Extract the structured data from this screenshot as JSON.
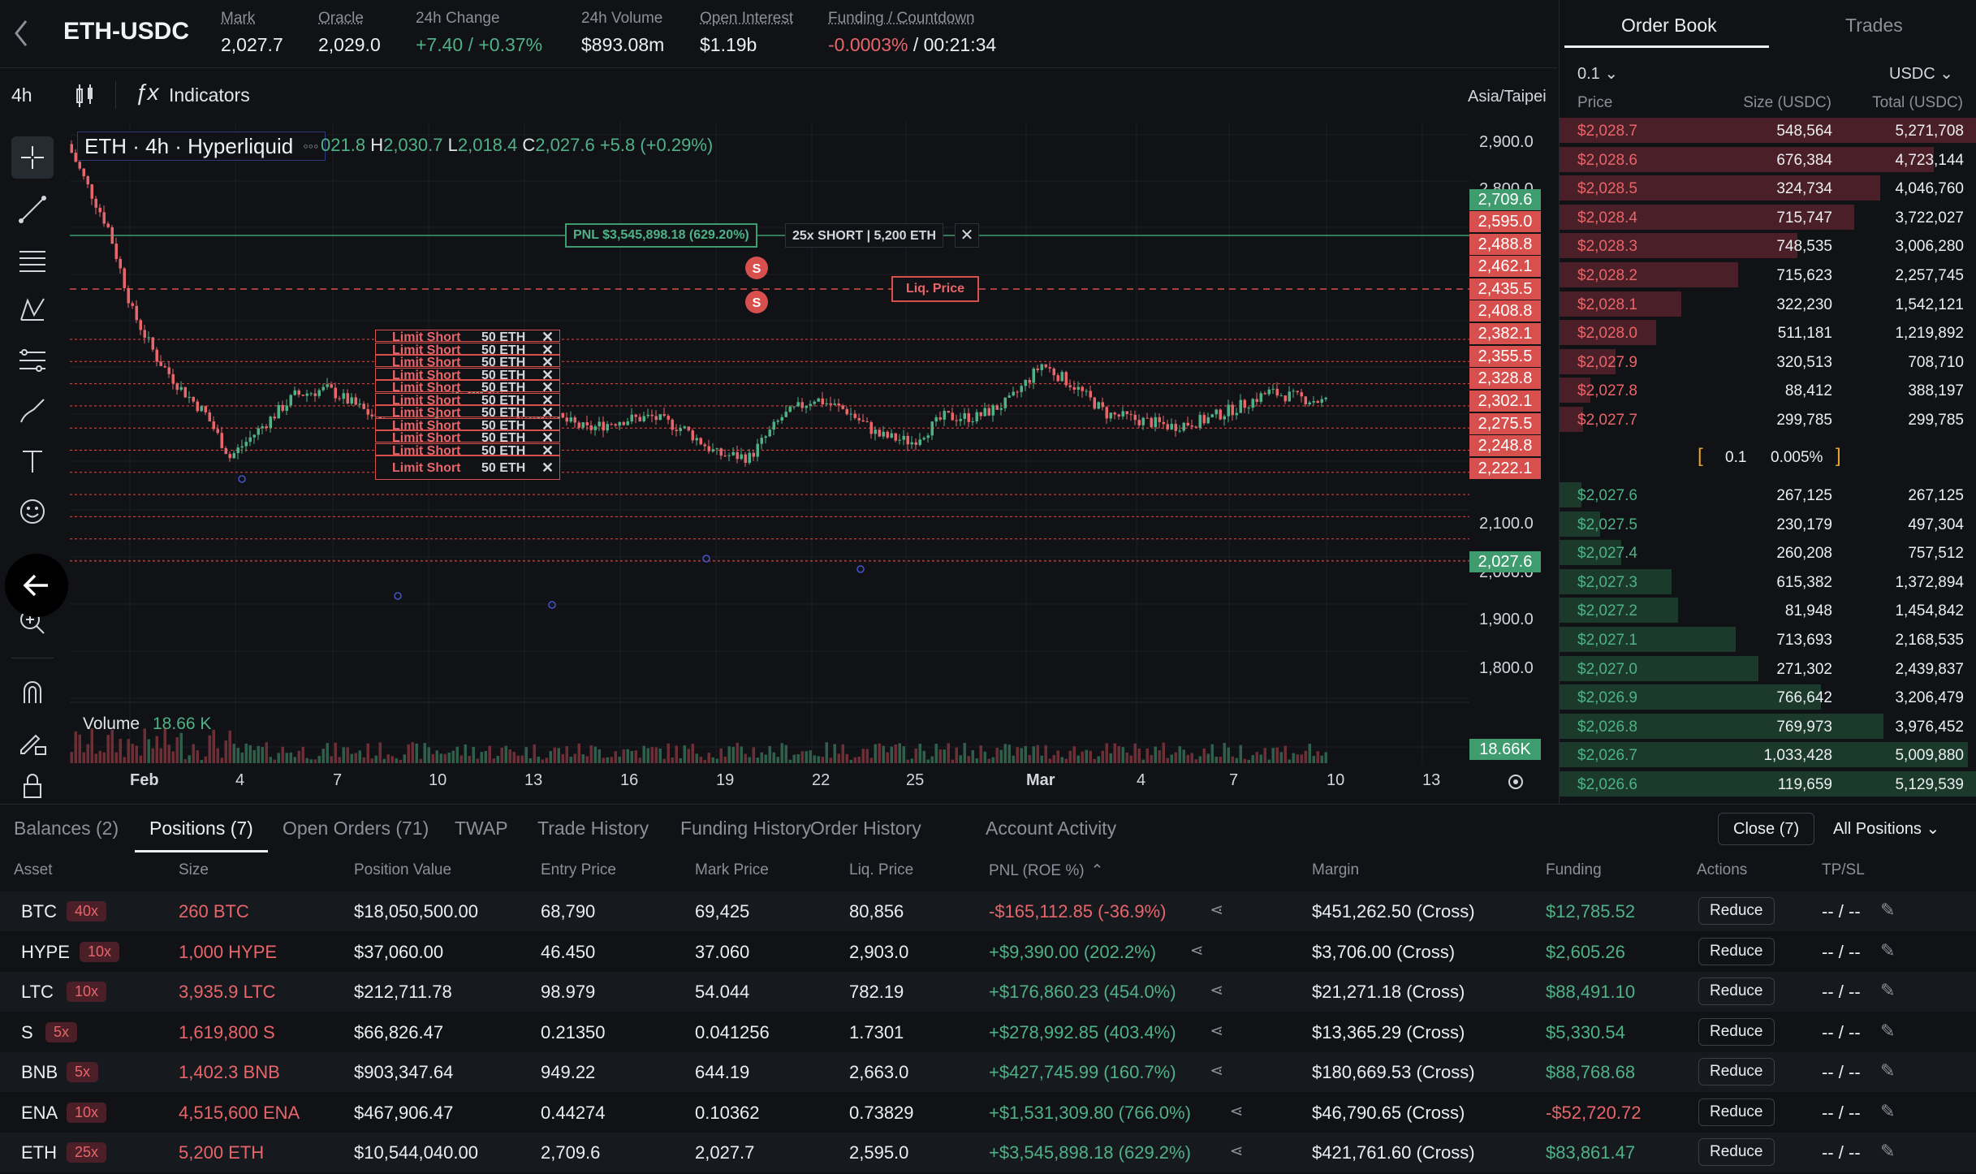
{
  "header": {
    "pair": "ETH-USDC",
    "stats": [
      {
        "label": "Mark",
        "value": "2,027.7",
        "underline": true,
        "color": "#eceef1"
      },
      {
        "label": "Oracle",
        "value": "2,029.0",
        "underline": true,
        "color": "#eceef1"
      },
      {
        "label": "24h Change",
        "value": "+7.40 / +0.37%",
        "underline": false,
        "color": "#4fb286"
      },
      {
        "label": "24h Volume",
        "value": "$893.08m",
        "underline": false,
        "color": "#eceef1"
      },
      {
        "label": "Open Interest",
        "value": "$1.19b",
        "underline": true,
        "color": "#eceef1"
      },
      {
        "label": "Funding / Countdown",
        "value": "-0.0003%",
        "value2": " / 00:21:34",
        "underline": true,
        "color": "#e8656a"
      }
    ]
  },
  "toolbar": {
    "interval": "4h",
    "indicators_label": "Indicators"
  },
  "chart": {
    "title": "ETH · 4h · Hyperliquid",
    "ohlc": {
      "o_rest": "021.8",
      "h_label": "H",
      "h": "2,030.7",
      "l_label": "L",
      "l": "2,018.4",
      "c_label": "C",
      "c": "2,027.6",
      "change": "+5.8 (+0.29%)"
    },
    "timezone": "Asia/Taipei",
    "y_ticks": [
      "2,900.0",
      "2,800.0",
      "2,100.0",
      "2,000.0",
      "1,900.0",
      "1,800.0"
    ],
    "price_labels": [
      {
        "value": "2,709.6",
        "color": "#3f9c6f"
      },
      {
        "value": "2,595.0",
        "color": "#d8504d"
      },
      {
        "value": "2,488.8",
        "color": "#d8504d"
      },
      {
        "value": "2,462.1",
        "color": "#d8504d"
      },
      {
        "value": "2,435.5",
        "color": "#d8504d"
      },
      {
        "value": "2,408.8",
        "color": "#d8504d"
      },
      {
        "value": "2,382.1",
        "color": "#d8504d"
      },
      {
        "value": "2,355.5",
        "color": "#d8504d"
      },
      {
        "value": "2,328.8",
        "color": "#d8504d"
      },
      {
        "value": "2,302.1",
        "color": "#d8504d"
      },
      {
        "value": "2,275.5",
        "color": "#d8504d"
      },
      {
        "value": "2,248.8",
        "color": "#d8504d"
      },
      {
        "value": "2,222.1",
        "color": "#d8504d"
      }
    ],
    "last_price": "2,027.6",
    "x_ticks": [
      "Feb",
      "4",
      "7",
      "10",
      "13",
      "16",
      "19",
      "22",
      "25",
      "Mar",
      "4",
      "7",
      "10",
      "13"
    ],
    "pnl_label": "PNL $3,545,898.18 (629.20%)",
    "position_label": "25x SHORT | 5,200 ETH",
    "liq_label": "Liq. Price",
    "limit_order_label": "Limit Short",
    "limit_order_size": "50 ETH",
    "limit_order_count": 11,
    "marker_label": "S",
    "volume_label": "Volume",
    "volume_value": "18.66 K",
    "volume_axis": "18.66K"
  },
  "orderbook": {
    "tabs": [
      "Order Book",
      "Trades"
    ],
    "tick": "0.1",
    "unit": "USDC",
    "headers": [
      "Price",
      "Size (USDC)",
      "Total (USDC)"
    ],
    "asks": [
      {
        "price": "$2,028.7",
        "size": "548,564",
        "total": "5,271,708",
        "depth": 1.0
      },
      {
        "price": "$2,028.6",
        "size": "676,384",
        "total": "4,723,144",
        "depth": 0.896
      },
      {
        "price": "$2,028.5",
        "size": "324,734",
        "total": "4,046,760",
        "depth": 0.768
      },
      {
        "price": "$2,028.4",
        "size": "715,747",
        "total": "3,722,027",
        "depth": 0.706
      },
      {
        "price": "$2,028.3",
        "size": "748,535",
        "total": "3,006,280",
        "depth": 0.57
      },
      {
        "price": "$2,028.2",
        "size": "715,623",
        "total": "2,257,745",
        "depth": 0.428
      },
      {
        "price": "$2,028.1",
        "size": "322,230",
        "total": "1,542,121",
        "depth": 0.292
      },
      {
        "price": "$2,028.0",
        "size": "511,181",
        "total": "1,219,892",
        "depth": 0.231
      },
      {
        "price": "$2,027.9",
        "size": "320,513",
        "total": "708,710",
        "depth": 0.134
      },
      {
        "price": "$2,027.8",
        "size": "88,412",
        "total": "388,197",
        "depth": 0.074
      },
      {
        "price": "$2,027.7",
        "size": "299,785",
        "total": "299,785",
        "depth": 0.057
      }
    ],
    "spread_value": "0.1",
    "spread_pct": "0.005%",
    "bids": [
      {
        "price": "$2,027.6",
        "size": "267,125",
        "total": "267,125",
        "depth": 0.052
      },
      {
        "price": "$2,027.5",
        "size": "230,179",
        "total": "497,304",
        "depth": 0.097
      },
      {
        "price": "$2,027.4",
        "size": "260,208",
        "total": "757,512",
        "depth": 0.148
      },
      {
        "price": "$2,027.3",
        "size": "615,382",
        "total": "1,372,894",
        "depth": 0.268
      },
      {
        "price": "$2,027.2",
        "size": "81,948",
        "total": "1,454,842",
        "depth": 0.284
      },
      {
        "price": "$2,027.1",
        "size": "713,693",
        "total": "2,168,535",
        "depth": 0.423
      },
      {
        "price": "$2,027.0",
        "size": "271,302",
        "total": "2,439,837",
        "depth": 0.476
      },
      {
        "price": "$2,026.9",
        "size": "766,642",
        "total": "3,206,479",
        "depth": 0.626
      },
      {
        "price": "$2,026.8",
        "size": "769,973",
        "total": "3,976,452",
        "depth": 0.776
      },
      {
        "price": "$2,026.7",
        "size": "1,033,428",
        "total": "5,009,880",
        "depth": 0.978
      },
      {
        "price": "$2,026.6",
        "size": "119,659",
        "total": "5,129,539",
        "depth": 1.0
      }
    ]
  },
  "bottom": {
    "tabs": [
      "Balances (2)",
      "Positions (7)",
      "Open Orders (71)",
      "TWAP",
      "Trade History",
      "Funding History",
      "Order History",
      "Account Activity"
    ],
    "active_tab": 1,
    "close_label": "Close (7)",
    "filter_label": "All Positions",
    "columns": [
      "Asset",
      "Size",
      "Position Value",
      "Entry Price",
      "Mark Price",
      "Liq. Price",
      "PNL (ROE %)",
      "Margin",
      "Funding",
      "Actions",
      "TP/SL"
    ],
    "reduce_label": "Reduce",
    "tpsl_value": "-- / --",
    "positions": [
      {
        "asset": "BTC",
        "lev": "40x",
        "size": "260 BTC",
        "value": "$18,050,500.00",
        "entry": "68,790",
        "mark": "69,425",
        "liq": "80,856",
        "pnl": "-$165,112.85 (-36.9%)",
        "pnl_pos": false,
        "margin": "$451,262.50 (Cross)",
        "funding": "$12,785.52",
        "funding_pos": true
      },
      {
        "asset": "HYPE",
        "lev": "10x",
        "size": "1,000 HYPE",
        "value": "$37,060.00",
        "entry": "46.450",
        "mark": "37.060",
        "liq": "2,903.0",
        "pnl": "+$9,390.00 (202.2%)",
        "pnl_pos": true,
        "margin": "$3,706.00 (Cross)",
        "funding": "$2,605.26",
        "funding_pos": true
      },
      {
        "asset": "LTC",
        "lev": "10x",
        "size": "3,935.9 LTC",
        "value": "$212,711.78",
        "entry": "98.979",
        "mark": "54.044",
        "liq": "782.19",
        "pnl": "+$176,860.23 (454.0%)",
        "pnl_pos": true,
        "margin": "$21,271.18 (Cross)",
        "funding": "$88,491.10",
        "funding_pos": true
      },
      {
        "asset": "S",
        "lev": "5x",
        "size": "1,619,800 S",
        "value": "$66,826.47",
        "entry": "0.21350",
        "mark": "0.041256",
        "liq": "1.7301",
        "pnl": "+$278,992.85 (403.4%)",
        "pnl_pos": true,
        "margin": "$13,365.29 (Cross)",
        "funding": "$5,330.54",
        "funding_pos": true
      },
      {
        "asset": "BNB",
        "lev": "5x",
        "size": "1,402.3 BNB",
        "value": "$903,347.64",
        "entry": "949.22",
        "mark": "644.19",
        "liq": "2,663.0",
        "pnl": "+$427,745.99 (160.7%)",
        "pnl_pos": true,
        "margin": "$180,669.53 (Cross)",
        "funding": "$88,768.68",
        "funding_pos": true
      },
      {
        "asset": "ENA",
        "lev": "10x",
        "size": "4,515,600 ENA",
        "value": "$467,906.47",
        "entry": "0.44274",
        "mark": "0.10362",
        "liq": "0.73829",
        "pnl": "+$1,531,309.80 (766.0%)",
        "pnl_pos": true,
        "margin": "$46,790.65 (Cross)",
        "funding": "-$52,720.72",
        "funding_pos": false
      },
      {
        "asset": "ETH",
        "lev": "25x",
        "size": "5,200 ETH",
        "value": "$10,544,040.00",
        "entry": "2,709.6",
        "mark": "2,027.7",
        "liq": "2,595.0",
        "pnl": "+$3,545,898.18 (629.2%)",
        "pnl_pos": true,
        "margin": "$421,761.60 (Cross)",
        "funding": "$83,861.47",
        "funding_pos": true
      }
    ]
  }
}
